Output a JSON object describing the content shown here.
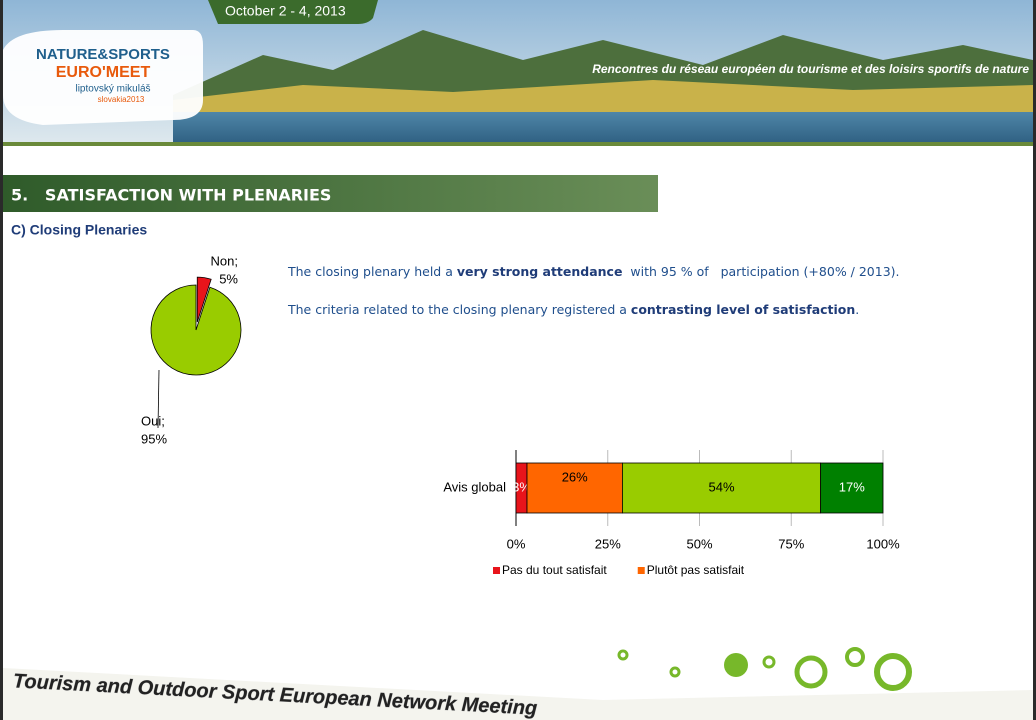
{
  "header": {
    "date": "October 2 - 4, 2013",
    "logo": [
      "NATURE&SPORTS",
      "EURO'MEET",
      "liptovský mikuláš",
      "slovakia2013"
    ],
    "tagline": "Rencontres du réseau européen du tourisme et des loisirs sportifs de nature"
  },
  "section": {
    "title": "5.   SATISFACTION WITH PLENARIES",
    "subtitle": "C) Closing Plenaries"
  },
  "text": {
    "paragraphs": [
      [
        "The closing plenary held a ",
        "very strong attendance",
        "  with 95 % of   participation (+80% / 2013)."
      ],
      [
        "The criteria related to the closing plenary registered a ",
        "contrasting level of satisfaction",
        "."
      ]
    ]
  },
  "chart_data": [
    {
      "type": "pie",
      "categories": [
        "Non;",
        "Oui;"
      ],
      "values": [
        5,
        95
      ],
      "value_labels": [
        "5%",
        "95%"
      ],
      "colors": [
        "#e8141b",
        "#99cc00"
      ],
      "exploded": [
        true,
        false
      ]
    },
    {
      "type": "bar",
      "orientation": "horizontal",
      "stacked": true,
      "categories": [
        "Avis global"
      ],
      "series": [
        {
          "name": "Pas du tout satisfait",
          "color": "#e8141b",
          "values": [
            3
          ],
          "value_labels": [
            "3%"
          ]
        },
        {
          "name": "Plutôt pas satisfait",
          "color": "#ff6600",
          "values": [
            26
          ],
          "value_labels": [
            "26%"
          ]
        },
        {
          "color": "#99cc00",
          "values": [
            54
          ],
          "value_labels": [
            "54%"
          ]
        },
        {
          "color": "#008000",
          "values": [
            17
          ],
          "value_labels": [
            "17%"
          ]
        }
      ],
      "xlim": [
        0,
        100
      ],
      "xticks": [
        {
          "value": 0,
          "label": "0%"
        },
        {
          "value": 25,
          "label": "25%"
        },
        {
          "value": 50,
          "label": "50%"
        },
        {
          "value": 75,
          "label": "75%"
        },
        {
          "value": 100,
          "label": "100%"
        }
      ],
      "grid": true,
      "legend": "bottom"
    }
  ],
  "footer": {
    "text": "Tourism and Outdoor Sport European Network Meeting"
  }
}
